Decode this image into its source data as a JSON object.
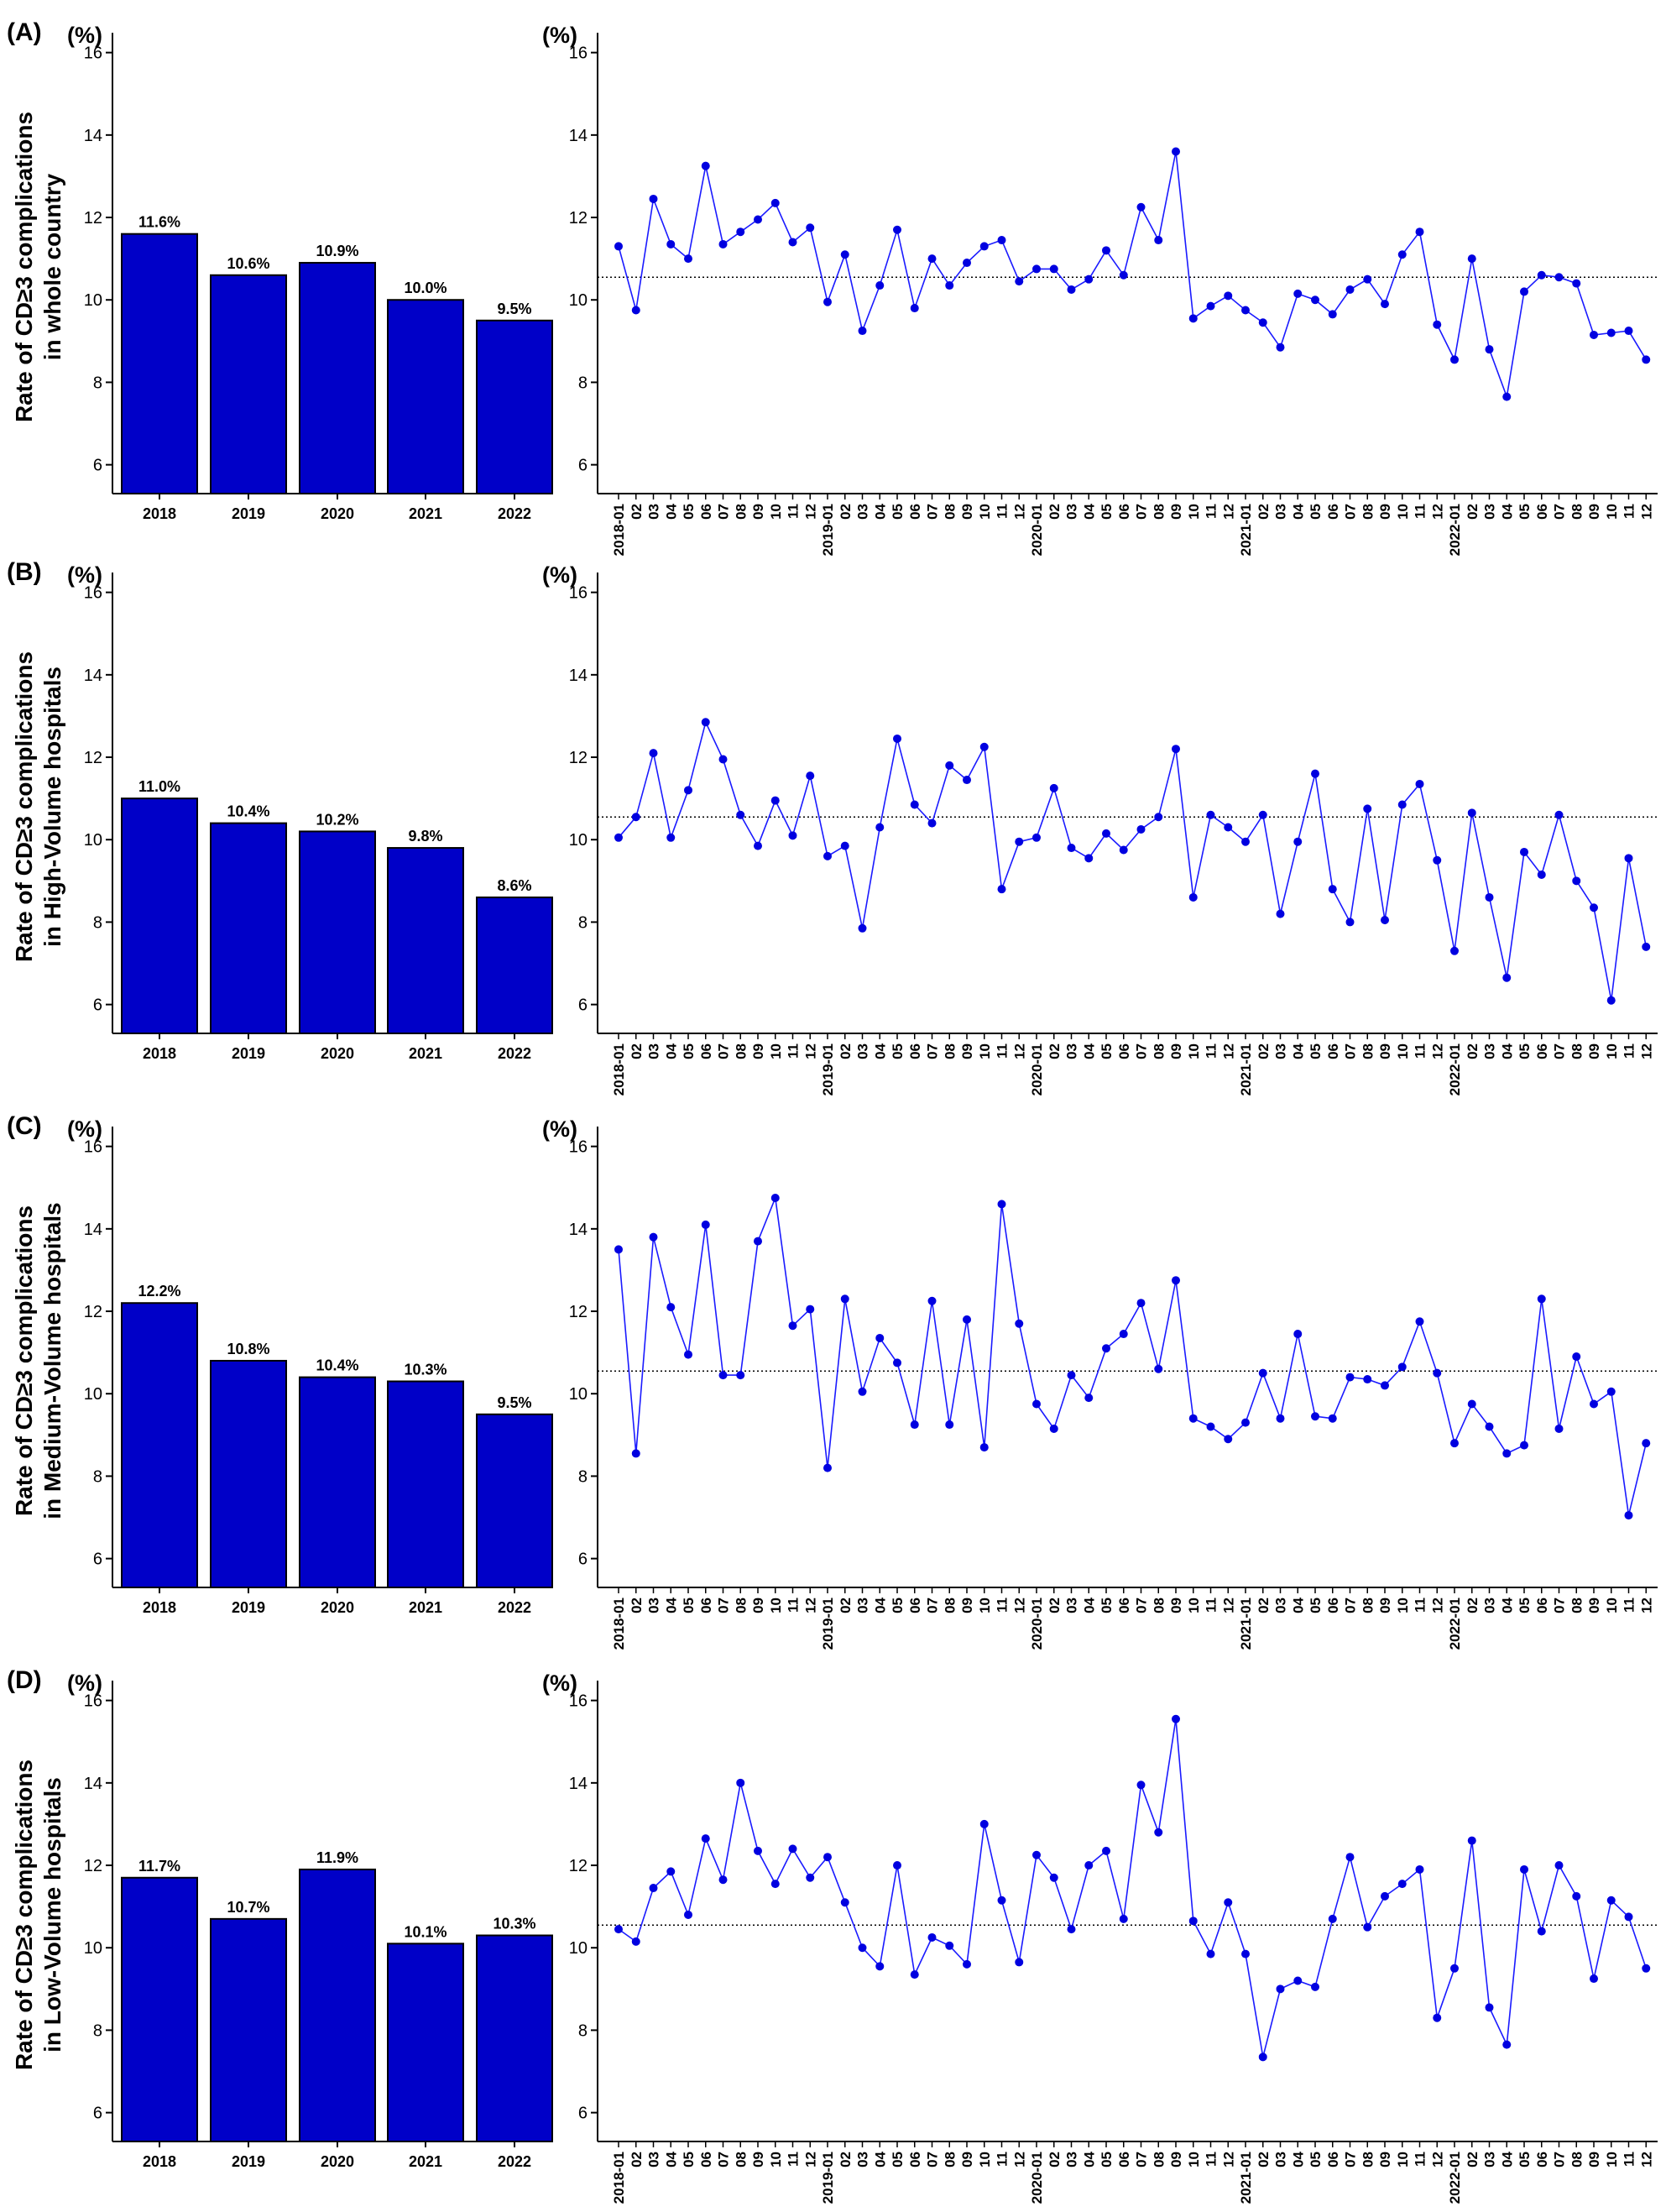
{
  "colors": {
    "bar_fill": "#0000c8",
    "bar_stroke": "#000000",
    "line": "#1a1aff",
    "point": "#0000e0",
    "axis": "#000000",
    "reference_line": "#000000"
  },
  "x_tick_labels": [
    "2018-01",
    "02",
    "03",
    "04",
    "05",
    "06",
    "07",
    "08",
    "09",
    "10",
    "11",
    "12",
    "2019-01",
    "02",
    "03",
    "04",
    "05",
    "06",
    "07",
    "08",
    "09",
    "10",
    "11",
    "12",
    "2020-01",
    "02",
    "03",
    "04",
    "05",
    "06",
    "07",
    "08",
    "09",
    "10",
    "11",
    "12",
    "2021-01",
    "02",
    "03",
    "04",
    "05",
    "06",
    "07",
    "08",
    "09",
    "10",
    "11",
    "12",
    "2022-01",
    "02",
    "03",
    "04",
    "05",
    "06",
    "07",
    "08",
    "09",
    "10",
    "11",
    "12"
  ],
  "chart_data": [
    {
      "panel": "(A)",
      "ylabel": [
        "Rate of CD≥3 complications",
        "in whole country"
      ],
      "charts": [
        {
          "type": "bar",
          "unit": "(%)",
          "categories": [
            "2018",
            "2019",
            "2020",
            "2021",
            "2022"
          ],
          "values": [
            11.6,
            10.6,
            10.9,
            10.0,
            9.5
          ],
          "labels": [
            "11.6%",
            "10.6%",
            "10.9%",
            "10.0%",
            "9.5%"
          ],
          "yticks": [
            6,
            8,
            10,
            12,
            14,
            16
          ],
          "ylim": [
            5.3,
            16.4
          ]
        },
        {
          "type": "line",
          "unit": "(%)",
          "values": [
            11.3,
            9.75,
            12.45,
            11.35,
            11.0,
            13.25,
            11.35,
            11.65,
            11.95,
            12.35,
            11.4,
            11.75,
            9.95,
            11.1,
            9.25,
            10.35,
            11.7,
            9.8,
            11.0,
            10.35,
            10.9,
            11.3,
            11.45,
            10.45,
            10.75,
            10.75,
            10.25,
            10.5,
            11.2,
            10.6,
            12.25,
            11.45,
            13.6,
            9.55,
            9.85,
            10.1,
            9.75,
            9.45,
            8.85,
            10.15,
            10.0,
            9.65,
            10.25,
            10.5,
            9.9,
            11.1,
            11.65,
            9.4,
            8.55,
            11.0,
            8.8,
            7.65,
            10.2,
            10.6,
            10.55,
            10.4,
            9.15,
            9.2,
            9.25,
            8.55
          ],
          "reference_line": 10.55,
          "yticks": [
            6,
            8,
            10,
            12,
            14,
            16
          ],
          "ylim": [
            5.3,
            16.4
          ]
        }
      ]
    },
    {
      "panel": "(B)",
      "ylabel": [
        "Rate of CD≥3 complications",
        "in High-Volume hospitals"
      ],
      "charts": [
        {
          "type": "bar",
          "unit": "(%)",
          "categories": [
            "2018",
            "2019",
            "2020",
            "2021",
            "2022"
          ],
          "values": [
            11.0,
            10.4,
            10.2,
            9.8,
            8.6
          ],
          "labels": [
            "11.0%",
            "10.4%",
            "10.2%",
            "9.8%",
            "8.6%"
          ],
          "yticks": [
            6,
            8,
            10,
            12,
            14,
            16
          ],
          "ylim": [
            5.3,
            16.4
          ]
        },
        {
          "type": "line",
          "unit": "(%)",
          "values": [
            10.05,
            10.55,
            12.1,
            10.05,
            11.2,
            12.85,
            11.95,
            10.6,
            9.85,
            10.95,
            10.1,
            11.55,
            9.6,
            9.85,
            7.85,
            10.3,
            12.45,
            10.85,
            10.4,
            11.8,
            11.45,
            12.25,
            8.8,
            9.95,
            10.05,
            11.25,
            9.8,
            9.55,
            10.15,
            9.75,
            10.25,
            10.55,
            12.2,
            8.6,
            10.6,
            10.3,
            9.95,
            10.6,
            8.2,
            9.95,
            11.6,
            8.8,
            8.0,
            10.75,
            8.05,
            10.85,
            11.35,
            9.5,
            7.3,
            10.65,
            8.6,
            6.65,
            9.7,
            9.15,
            10.6,
            9.0,
            8.35,
            6.1,
            9.55,
            7.4
          ],
          "reference_line": 10.55,
          "yticks": [
            6,
            8,
            10,
            12,
            14,
            16
          ],
          "ylim": [
            5.3,
            16.4
          ]
        }
      ]
    },
    {
      "panel": "(C)",
      "ylabel": [
        "Rate of CD≥3 complications",
        "in Medium-Volume hospitals"
      ],
      "charts": [
        {
          "type": "bar",
          "unit": "(%)",
          "categories": [
            "2018",
            "2019",
            "2020",
            "2021",
            "2022"
          ],
          "values": [
            12.2,
            10.8,
            10.4,
            10.3,
            9.5
          ],
          "labels": [
            "12.2%",
            "10.8%",
            "10.4%",
            "10.3%",
            "9.5%"
          ],
          "yticks": [
            6,
            8,
            10,
            12,
            14,
            16
          ],
          "ylim": [
            5.3,
            16.4
          ]
        },
        {
          "type": "line",
          "unit": "(%)",
          "values": [
            13.5,
            8.55,
            13.8,
            12.1,
            10.95,
            14.1,
            10.45,
            10.45,
            13.7,
            14.75,
            11.65,
            12.05,
            8.2,
            12.3,
            10.05,
            11.35,
            10.75,
            9.25,
            12.25,
            9.25,
            11.8,
            8.7,
            14.6,
            11.7,
            9.75,
            9.15,
            10.45,
            9.9,
            11.1,
            11.45,
            12.2,
            10.6,
            12.75,
            9.4,
            9.2,
            8.9,
            9.3,
            10.5,
            9.4,
            11.45,
            9.45,
            9.4,
            10.4,
            10.35,
            10.2,
            10.65,
            11.75,
            10.5,
            8.8,
            9.75,
            9.2,
            8.55,
            8.75,
            12.3,
            9.15,
            10.9,
            9.75,
            10.05,
            7.05,
            8.8
          ],
          "reference_line": 10.55,
          "yticks": [
            6,
            8,
            10,
            12,
            14,
            16
          ],
          "ylim": [
            5.3,
            16.4
          ]
        }
      ]
    },
    {
      "panel": "(D)",
      "ylabel": [
        "Rate of CD≥3 complications",
        "in Low-Volume hospitals"
      ],
      "charts": [
        {
          "type": "bar",
          "unit": "(%)",
          "categories": [
            "2018",
            "2019",
            "2020",
            "2021",
            "2022"
          ],
          "values": [
            11.7,
            10.7,
            11.9,
            10.1,
            10.3
          ],
          "labels": [
            "11.7%",
            "10.7%",
            "11.9%",
            "10.1%",
            "10.3%"
          ],
          "yticks": [
            6,
            8,
            10,
            12,
            14,
            16
          ],
          "ylim": [
            5.3,
            16.4
          ]
        },
        {
          "type": "line",
          "unit": "(%)",
          "values": [
            10.45,
            10.15,
            11.45,
            11.85,
            10.8,
            12.65,
            11.65,
            14.0,
            12.35,
            11.55,
            12.4,
            11.7,
            12.2,
            11.1,
            10.0,
            9.55,
            12.0,
            9.35,
            10.25,
            10.05,
            9.6,
            13.0,
            11.15,
            9.65,
            12.25,
            11.7,
            10.45,
            12.0,
            12.35,
            10.7,
            13.95,
            12.8,
            15.55,
            10.65,
            9.85,
            11.1,
            9.85,
            7.35,
            9.0,
            9.2,
            9.05,
            10.7,
            12.2,
            10.5,
            11.25,
            11.55,
            11.9,
            8.3,
            9.5,
            12.6,
            8.55,
            7.65,
            11.9,
            10.4,
            12.0,
            11.25,
            9.25,
            11.15,
            10.75,
            9.5
          ],
          "reference_line": 10.55,
          "yticks": [
            6,
            8,
            10,
            12,
            14,
            16
          ],
          "ylim": [
            5.3,
            16.4
          ]
        }
      ]
    }
  ]
}
